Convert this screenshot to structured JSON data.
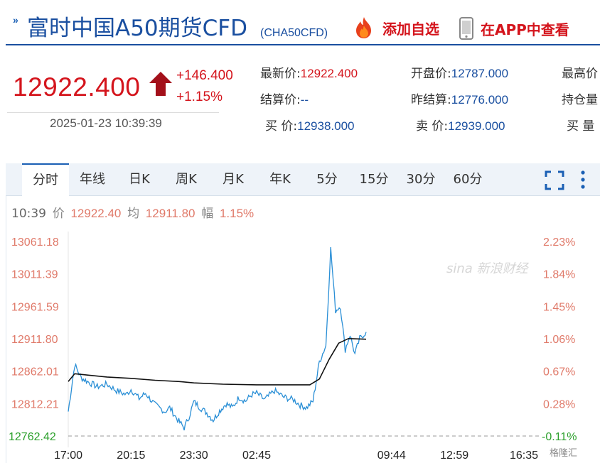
{
  "header": {
    "title": "富时中国A50期货CFD",
    "code": "(CHA50CFD)",
    "add_favorite_label": "添加自选",
    "app_view_label": "在APP中查看"
  },
  "quote": {
    "price": "12922.400",
    "change_abs": "+146.400",
    "change_pct": "+1.15%",
    "timestamp": "2025-01-23 10:39:39",
    "last_label": "最新价:",
    "last_value": "12922.400",
    "open_label": "开盘价:",
    "open_value": "12787.000",
    "high_label": "最高价",
    "settle_label": "结算价:",
    "settle_value": "--",
    "prev_settle_label": "昨结算:",
    "prev_settle_value": "12776.000",
    "open_interest_label": "持仓量",
    "bid_label": "买  价:",
    "bid_value": "12938.000",
    "ask_label": "卖  价:",
    "ask_value": "12939.000",
    "bid_vol_label": "买  量"
  },
  "tabs": [
    "分时",
    "年线",
    "日K",
    "周K",
    "月K",
    "年K",
    "5分",
    "15分",
    "30分",
    "60分"
  ],
  "active_tab": 0,
  "info": {
    "time": "10:39",
    "price_key": "价",
    "price_val": "12922.40",
    "avg_key": "均",
    "avg_val": "12911.80",
    "amp_key": "幅",
    "amp_val": "1.15%"
  },
  "watermark": "sina 新浪财经",
  "brand": "格隆汇",
  "colors": {
    "up": "#d4141c",
    "brand_blue": "#1a4fa0",
    "price_line": "#2a8fd6",
    "avg_line": "#111111",
    "down": "#2ca02c"
  },
  "chart_data": {
    "type": "line",
    "y_left_ticks": [
      "13061.18",
      "13011.39",
      "12961.59",
      "12911.80",
      "12862.01",
      "12812.21",
      "12762.42"
    ],
    "y_right_ticks": [
      "2.23%",
      "1.84%",
      "1.45%",
      "1.06%",
      "0.67%",
      "0.28%",
      "-0.11%"
    ],
    "x_ticks": [
      "17:00",
      "20:15",
      "23:30",
      "02:45",
      "09:44",
      "12:59",
      "16:35"
    ],
    "ylim": [
      12762.42,
      13061.18
    ],
    "prev_settle": 12776.0,
    "series": [
      {
        "points": [
          [
            "17:00",
            12800
          ],
          [
            "17:20",
            12872
          ],
          [
            "17:40",
            12852
          ],
          [
            "18:00",
            12846
          ],
          [
            "18:30",
            12838
          ],
          [
            "19:00",
            12842
          ],
          [
            "19:30",
            12832
          ],
          [
            "20:00",
            12826
          ],
          [
            "20:15",
            12834
          ],
          [
            "20:40",
            12820
          ],
          [
            "21:00",
            12828
          ],
          [
            "21:30",
            12810
          ],
          [
            "22:00",
            12800
          ],
          [
            "22:15",
            12806
          ],
          [
            "22:40",
            12787
          ],
          [
            "23:00",
            12775
          ],
          [
            "23:15",
            12792
          ],
          [
            "23:30",
            12815
          ],
          [
            "23:50",
            12806
          ],
          [
            "00:10",
            12798
          ],
          [
            "00:30",
            12787
          ],
          [
            "00:50",
            12801
          ],
          [
            "01:10",
            12812
          ],
          [
            "01:30",
            12806
          ],
          [
            "01:50",
            12822
          ],
          [
            "02:10",
            12816
          ],
          [
            "02:30",
            12826
          ],
          [
            "02:45",
            12828
          ],
          [
            "03:10",
            12818
          ],
          [
            "03:40",
            12832
          ],
          [
            "04:10",
            12822
          ],
          [
            "04:40",
            12818
          ],
          [
            "05:00",
            12810
          ],
          [
            "05:20",
            12806
          ],
          [
            "05:40",
            12816
          ],
          [
            "06:00",
            12877
          ],
          [
            "06:20",
            12901
          ],
          [
            "06:35",
            13050
          ],
          [
            "06:50",
            12955
          ],
          [
            "07:05",
            12962
          ],
          [
            "07:20",
            12895
          ],
          [
            "07:35",
            12918
          ],
          [
            "07:50",
            12888
          ],
          [
            "08:05",
            12912
          ],
          [
            "08:25",
            12922
          ]
        ]
      },
      {
        "points": [
          [
            "17:00",
            12846
          ],
          [
            "17:20",
            12858
          ],
          [
            "18:00",
            12856
          ],
          [
            "19:00",
            12853
          ],
          [
            "20:15",
            12851
          ],
          [
            "21:30",
            12848
          ],
          [
            "22:45",
            12846
          ],
          [
            "23:30",
            12844
          ],
          [
            "01:00",
            12842
          ],
          [
            "02:45",
            12841
          ],
          [
            "04:00",
            12841
          ],
          [
            "05:30",
            12841
          ],
          [
            "06:00",
            12850
          ],
          [
            "06:30",
            12880
          ],
          [
            "07:00",
            12905
          ],
          [
            "07:30",
            12912
          ],
          [
            "08:25",
            12911
          ]
        ]
      }
    ]
  }
}
